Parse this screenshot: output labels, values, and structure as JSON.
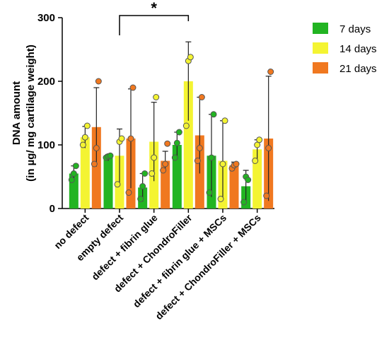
{
  "chart_data": {
    "type": "bar",
    "title": "",
    "xlabel": "",
    "ylabel_line1": "DNA amount",
    "ylabel_line2": "(in  µg/ mg cartilage weight)",
    "ylim": [
      0,
      300
    ],
    "yticks": [
      0,
      100,
      200,
      300
    ],
    "categories": [
      "no defect",
      "empty defect",
      "defect + fibrin glue",
      "defect + ChondroFiller",
      "defect + fibrin glue + MSCs",
      "defect + ChondroFiller + MSCs"
    ],
    "series": [
      {
        "name": "7 days",
        "color": "#22b422",
        "values": [
          55,
          80,
          33,
          100,
          83,
          35
        ],
        "err": [
          12,
          5,
          22,
          20,
          65,
          25
        ],
        "points": [
          [
            45,
            55,
            67
          ],
          [
            80,
            82,
            83
          ],
          [
            15,
            35,
            55
          ],
          [
            80,
            103,
            120
          ],
          [
            25,
            80,
            148
          ],
          [
            10,
            50,
            45
          ]
        ]
      },
      {
        "name": "14 days",
        "color": "#f4f432",
        "values": [
          112,
          83,
          105,
          200,
          75,
          93
        ],
        "err": [
          17,
          42,
          62,
          62,
          63,
          15
        ],
        "points": [
          [
            100,
            112,
            130
          ],
          [
            38,
            105,
            110
          ],
          [
            55,
            80,
            175
          ],
          [
            130,
            232,
            238
          ],
          [
            15,
            70,
            138
          ],
          [
            75,
            100,
            108
          ]
        ]
      },
      {
        "name": "21 days",
        "color": "#f07820",
        "values": [
          128,
          110,
          75,
          115,
          68,
          110
        ],
        "err": [
          62,
          78,
          15,
          60,
          5,
          98
        ],
        "points": [
          [
            70,
            95,
            200
          ],
          [
            25,
            110,
            190
          ],
          [
            60,
            70,
            102
          ],
          [
            75,
            95,
            175
          ],
          [
            63,
            68,
            70
          ],
          [
            20,
            95,
            215
          ]
        ]
      }
    ],
    "significance": {
      "label": "*",
      "from_category": 1,
      "to_category": 3
    },
    "legend_position": "top-right"
  }
}
